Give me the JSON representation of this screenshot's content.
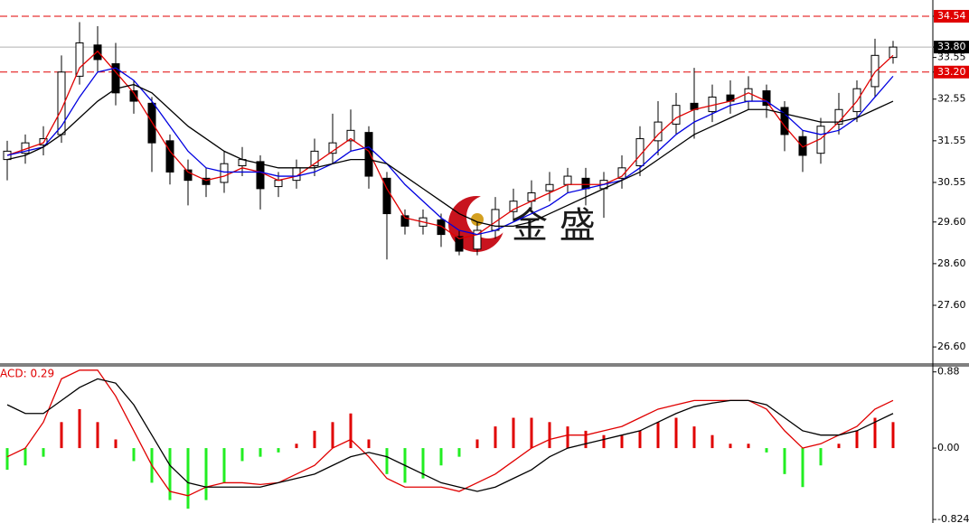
{
  "chart_data": [
    {
      "type": "candlestick",
      "open": [
        31.1,
        31.25,
        31.45,
        31.7,
        33.1,
        33.85,
        33.4,
        32.75,
        32.45,
        31.55,
        30.85,
        30.65,
        30.55,
        30.95,
        31.05,
        30.45,
        30.6,
        30.95,
        31.25,
        31.55,
        31.75,
        30.65,
        29.75,
        29.5,
        29.65,
        29.25,
        28.95,
        29.4,
        29.85,
        30.1,
        30.35,
        30.5,
        30.65,
        30.4,
        30.65,
        30.95,
        31.55,
        31.95,
        32.45,
        32.25,
        32.65,
        32.5,
        32.75,
        32.35,
        31.65,
        31.25,
        31.95,
        32.25,
        32.85,
        33.55
      ],
      "high": [
        31.55,
        31.7,
        31.9,
        33.6,
        34.4,
        34.3,
        33.9,
        33.0,
        32.6,
        31.7,
        31.1,
        30.9,
        31.3,
        31.4,
        31.2,
        30.8,
        31.1,
        31.6,
        32.2,
        32.3,
        31.9,
        30.8,
        29.9,
        29.9,
        29.8,
        29.4,
        29.6,
        30.2,
        30.4,
        30.6,
        30.8,
        30.9,
        30.9,
        30.8,
        31.2,
        31.9,
        32.5,
        32.7,
        33.3,
        32.9,
        33.0,
        33.1,
        32.9,
        32.5,
        31.8,
        32.1,
        32.7,
        33.0,
        34.0,
        33.95
      ],
      "low": [
        30.6,
        31.0,
        31.2,
        31.5,
        32.9,
        33.2,
        32.4,
        32.2,
        30.8,
        30.5,
        30.0,
        30.2,
        30.3,
        30.7,
        29.9,
        30.2,
        30.4,
        30.7,
        31.0,
        31.3,
        30.4,
        28.7,
        29.3,
        29.3,
        29.0,
        28.8,
        28.8,
        29.2,
        29.6,
        29.9,
        30.1,
        30.3,
        30.0,
        29.7,
        30.4,
        30.7,
        31.2,
        31.7,
        31.6,
        32.0,
        32.2,
        32.3,
        32.1,
        31.3,
        30.8,
        31.0,
        31.7,
        32.0,
        32.6,
        33.4
      ],
      "close": [
        31.3,
        31.5,
        31.6,
        33.2,
        33.9,
        33.5,
        32.7,
        32.5,
        31.5,
        30.8,
        30.6,
        30.5,
        31.0,
        31.1,
        30.4,
        30.6,
        30.9,
        31.3,
        31.5,
        31.8,
        30.7,
        29.8,
        29.5,
        29.7,
        29.3,
        28.9,
        29.4,
        29.9,
        30.1,
        30.3,
        30.5,
        30.7,
        30.4,
        30.6,
        30.9,
        31.6,
        32.0,
        32.4,
        32.3,
        32.6,
        32.5,
        32.8,
        32.4,
        31.7,
        31.2,
        31.9,
        32.3,
        32.8,
        33.6,
        33.8
      ],
      "up_color": "#ffffff",
      "down_color": "#000000",
      "outline_color": "#000000",
      "lines": [
        {
          "color": "#e00000",
          "values": [
            31.2,
            31.35,
            31.5,
            32.3,
            33.3,
            33.7,
            33.2,
            32.7,
            32.0,
            31.3,
            30.8,
            30.6,
            30.7,
            30.9,
            30.8,
            30.6,
            30.7,
            31.0,
            31.3,
            31.6,
            31.3,
            30.4,
            29.7,
            29.6,
            29.5,
            29.2,
            29.3,
            29.6,
            29.9,
            30.1,
            30.3,
            30.5,
            30.5,
            30.5,
            30.7,
            31.2,
            31.7,
            32.1,
            32.3,
            32.4,
            32.5,
            32.7,
            32.5,
            31.9,
            31.4,
            31.6,
            32.0,
            32.5,
            33.2,
            33.6
          ]
        },
        {
          "color": "#0000e0",
          "values": [
            31.2,
            31.3,
            31.4,
            31.9,
            32.6,
            33.2,
            33.3,
            33.0,
            32.5,
            31.9,
            31.3,
            30.9,
            30.8,
            30.8,
            30.8,
            30.7,
            30.7,
            30.8,
            31.0,
            31.3,
            31.4,
            31.0,
            30.5,
            30.1,
            29.7,
            29.4,
            29.3,
            29.4,
            29.6,
            29.8,
            30.0,
            30.3,
            30.4,
            30.5,
            30.6,
            30.9,
            31.3,
            31.7,
            32.0,
            32.2,
            32.4,
            32.5,
            32.5,
            32.2,
            31.8,
            31.7,
            31.8,
            32.1,
            32.6,
            33.1
          ]
        },
        {
          "color": "#000000",
          "values": [
            31.1,
            31.2,
            31.4,
            31.7,
            32.1,
            32.5,
            32.8,
            32.9,
            32.7,
            32.3,
            31.9,
            31.6,
            31.3,
            31.1,
            31.0,
            30.9,
            30.9,
            30.9,
            31.0,
            31.1,
            31.1,
            31.0,
            30.7,
            30.4,
            30.1,
            29.8,
            29.6,
            29.5,
            29.5,
            29.6,
            29.8,
            30.0,
            30.2,
            30.4,
            30.6,
            30.8,
            31.1,
            31.4,
            31.7,
            31.9,
            32.1,
            32.3,
            32.3,
            32.2,
            32.1,
            32.0,
            32.0,
            32.1,
            32.3,
            32.5
          ]
        }
      ],
      "ylim": [
        26.19,
        34.93
      ],
      "yticks": [
        34.54,
        {
          "value": 33.8,
          "label": "33.80"
        },
        33.55,
        {
          "value": 33.2,
          "label": "33.20"
        },
        32.55,
        31.55,
        30.55,
        {
          "value": 29.6,
          "label": "29.60"
        },
        {
          "value": 28.6,
          "label": "28.60"
        },
        {
          "value": 27.6,
          "label": "27.60"
        },
        {
          "value": 26.6,
          "label": "26.60"
        }
      ],
      "hlines": [
        {
          "value": 34.54,
          "color": "#e00000",
          "style": "dashed",
          "label_color": "#e00000"
        },
        {
          "value": 33.8,
          "color": "#b0b0b0",
          "style": "solid",
          "label_color": "#000000"
        },
        {
          "value": 33.2,
          "color": "#e00000",
          "style": "dashed",
          "label_color": "#e00000"
        }
      ],
      "watermark": "金 盛"
    },
    {
      "type": "macd",
      "title": "ACD: 0.29",
      "histogram": [
        -0.25,
        -0.2,
        -0.1,
        0.3,
        0.45,
        0.3,
        0.1,
        -0.15,
        -0.4,
        -0.6,
        -0.7,
        -0.6,
        -0.4,
        -0.15,
        -0.1,
        -0.05,
        0.05,
        0.2,
        0.3,
        0.4,
        0.1,
        -0.3,
        -0.4,
        -0.35,
        -0.2,
        -0.1,
        0.1,
        0.25,
        0.35,
        0.35,
        0.3,
        0.25,
        0.2,
        0.15,
        0.15,
        0.2,
        0.3,
        0.35,
        0.25,
        0.15,
        0.05,
        0.05,
        -0.05,
        -0.3,
        -0.45,
        -0.2,
        0.05,
        0.2,
        0.35,
        0.3
      ],
      "positive_color": "#e00000",
      "negative_color": "#22ee22",
      "lines": [
        {
          "color": "#e00000",
          "values": [
            -0.1,
            0.0,
            0.3,
            0.8,
            0.9,
            0.9,
            0.6,
            0.2,
            -0.2,
            -0.5,
            -0.55,
            -0.45,
            -0.4,
            -0.4,
            -0.42,
            -0.4,
            -0.3,
            -0.2,
            0.0,
            0.1,
            -0.1,
            -0.35,
            -0.45,
            -0.45,
            -0.45,
            -0.5,
            -0.4,
            -0.3,
            -0.15,
            0.0,
            0.1,
            0.15,
            0.15,
            0.2,
            0.25,
            0.35,
            0.45,
            0.5,
            0.55,
            0.55,
            0.55,
            0.55,
            0.45,
            0.2,
            0.0,
            0.05,
            0.15,
            0.25,
            0.45,
            0.55
          ]
        },
        {
          "color": "#000000",
          "values": [
            0.5,
            0.4,
            0.4,
            0.55,
            0.7,
            0.8,
            0.75,
            0.5,
            0.15,
            -0.2,
            -0.4,
            -0.45,
            -0.45,
            -0.45,
            -0.45,
            -0.4,
            -0.35,
            -0.3,
            -0.2,
            -0.1,
            -0.05,
            -0.1,
            -0.2,
            -0.3,
            -0.4,
            -0.45,
            -0.5,
            -0.45,
            -0.35,
            -0.25,
            -0.1,
            0.0,
            0.05,
            0.1,
            0.15,
            0.2,
            0.3,
            0.4,
            0.48,
            0.52,
            0.55,
            0.55,
            0.5,
            0.35,
            0.2,
            0.15,
            0.15,
            0.2,
            0.3,
            0.4
          ]
        }
      ],
      "ylim": [
        -0.865,
        0.95
      ],
      "yticks": [
        0.88,
        {
          "value": 0,
          "label": "0.00"
        },
        -0.824
      ]
    }
  ]
}
